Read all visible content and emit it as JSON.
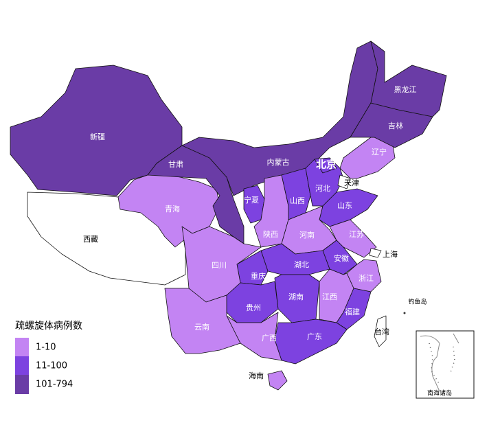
{
  "legend": {
    "title": "疏螺旋体病例数",
    "items": [
      {
        "label": "1-10",
        "color": "#c384f3"
      },
      {
        "label": "11-100",
        "color": "#7d42e0"
      },
      {
        "label": "101-794",
        "color": "#6a3ca6"
      }
    ]
  },
  "regions": [
    {
      "name": "新疆",
      "color": "#6a3ca6"
    },
    {
      "name": "西藏",
      "color": "#ffffff"
    },
    {
      "name": "青海",
      "color": "#c384f3"
    },
    {
      "name": "甘肃",
      "color": "#6a3ca6"
    },
    {
      "name": "内蒙古",
      "color": "#6a3ca6"
    },
    {
      "name": "宁夏",
      "color": "#7d42e0"
    },
    {
      "name": "陕西",
      "color": "#c384f3"
    },
    {
      "name": "山西",
      "color": "#7d42e0"
    },
    {
      "name": "河北",
      "color": "#7d42e0"
    },
    {
      "name": "北京",
      "color": "#7d42e0"
    },
    {
      "name": "天津",
      "color": "#ffffff"
    },
    {
      "name": "辽宁",
      "color": "#c384f3"
    },
    {
      "name": "吉林",
      "color": "#6a3ca6"
    },
    {
      "name": "黑龙江",
      "color": "#6a3ca6"
    },
    {
      "name": "山东",
      "color": "#7d42e0"
    },
    {
      "name": "河南",
      "color": "#c384f3"
    },
    {
      "name": "江苏",
      "color": "#c384f3"
    },
    {
      "name": "上海",
      "color": "#ffffff"
    },
    {
      "name": "安徽",
      "color": "#7d42e0"
    },
    {
      "name": "浙江",
      "color": "#c384f3"
    },
    {
      "name": "湖北",
      "color": "#7d42e0"
    },
    {
      "name": "重庆",
      "color": "#7d42e0"
    },
    {
      "name": "四川",
      "color": "#c384f3"
    },
    {
      "name": "贵州",
      "color": "#7d42e0"
    },
    {
      "name": "湖南",
      "color": "#7d42e0"
    },
    {
      "name": "江西",
      "color": "#c384f3"
    },
    {
      "name": "福建",
      "color": "#7d42e0"
    },
    {
      "name": "广东",
      "color": "#7d42e0"
    },
    {
      "name": "广西",
      "color": "#c384f3"
    },
    {
      "name": "云南",
      "color": "#c384f3"
    },
    {
      "name": "海南",
      "color": "#c384f3"
    },
    {
      "name": "台湾",
      "color": "#ffffff"
    }
  ],
  "labels": [
    "钓鱼岛",
    "南海诸岛"
  ]
}
